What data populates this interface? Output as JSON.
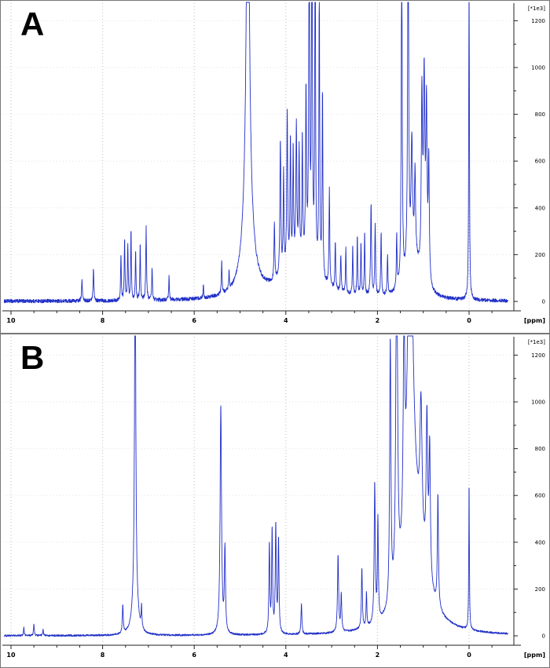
{
  "figure": {
    "panel_count": 2
  },
  "chart_data": [
    {
      "type": "line",
      "chart_kind": "nmr-spectrum",
      "panel_label": "A",
      "xlabel": "[ppm]",
      "ylabel": "[*1e3]",
      "line_color": "#2130c8",
      "grid_color": "#bdbdbd",
      "x_axis": {
        "unit": "ppm",
        "min": -0.85,
        "max": 10.15,
        "reversed": true,
        "major_ticks": [
          10,
          8,
          6,
          4,
          2,
          0
        ],
        "minor_tick_step": 0.5
      },
      "y_axis": {
        "min": 0,
        "max": 1300,
        "major_ticks": [
          0,
          200,
          400,
          600,
          800,
          1000,
          1200
        ],
        "minor_tick_step": 100
      },
      "noise_amplitude": 8,
      "peaks": [
        [
          8.45,
          90,
          0.01
        ],
        [
          8.2,
          140,
          0.01
        ],
        [
          7.6,
          200,
          0.009
        ],
        [
          7.52,
          270,
          0.009
        ],
        [
          7.45,
          240,
          0.009
        ],
        [
          7.38,
          300,
          0.009
        ],
        [
          7.28,
          210,
          0.009
        ],
        [
          7.18,
          240,
          0.009
        ],
        [
          7.05,
          310,
          0.01
        ],
        [
          6.92,
          140,
          0.009
        ],
        [
          6.55,
          100,
          0.008
        ],
        [
          5.8,
          60,
          0.008
        ],
        [
          5.4,
          140,
          0.009
        ],
        [
          5.24,
          80,
          0.008
        ],
        [
          4.83,
          1900,
          0.03
        ],
        [
          4.83,
          500,
          0.11
        ],
        [
          4.25,
          250,
          0.01
        ],
        [
          4.12,
          580,
          0.012
        ],
        [
          4.05,
          430,
          0.01
        ],
        [
          3.97,
          660,
          0.012
        ],
        [
          3.9,
          540,
          0.01
        ],
        [
          3.84,
          490,
          0.01
        ],
        [
          3.77,
          580,
          0.012
        ],
        [
          3.71,
          470,
          0.01
        ],
        [
          3.64,
          530,
          0.01
        ],
        [
          3.56,
          720,
          0.012
        ],
        [
          3.49,
          1500,
          0.012
        ],
        [
          3.43,
          1650,
          0.011
        ],
        [
          3.36,
          1500,
          0.01
        ],
        [
          3.27,
          1250,
          0.01
        ],
        [
          3.2,
          800,
          0.01
        ],
        [
          3.05,
          420,
          0.01
        ],
        [
          3.7,
          160,
          0.45
        ],
        [
          2.92,
          210,
          0.01
        ],
        [
          2.8,
          160,
          0.01
        ],
        [
          2.69,
          190,
          0.009
        ],
        [
          2.54,
          210,
          0.009
        ],
        [
          2.44,
          250,
          0.009
        ],
        [
          2.36,
          230,
          0.009
        ],
        [
          2.28,
          270,
          0.009
        ],
        [
          2.14,
          390,
          0.012
        ],
        [
          2.05,
          310,
          0.01
        ],
        [
          1.92,
          270,
          0.01
        ],
        [
          1.78,
          170,
          0.01
        ],
        [
          1.58,
          230,
          0.01
        ],
        [
          1.47,
          1550,
          0.012
        ],
        [
          1.33,
          1650,
          0.013
        ],
        [
          1.25,
          480,
          0.018
        ],
        [
          1.18,
          350,
          0.014
        ],
        [
          1.22,
          180,
          0.16
        ],
        [
          1.03,
          760,
          0.016
        ],
        [
          0.98,
          830,
          0.018
        ],
        [
          0.93,
          720,
          0.016
        ],
        [
          0.88,
          520,
          0.014
        ],
        [
          0.0,
          1650,
          0.008
        ]
      ]
    },
    {
      "type": "line",
      "chart_kind": "nmr-spectrum",
      "panel_label": "B",
      "xlabel": "[ppm]",
      "ylabel": "[*1e3]",
      "line_color": "#2130c8",
      "grid_color": "#bdbdbd",
      "x_axis": {
        "unit": "ppm",
        "min": -0.85,
        "max": 10.15,
        "reversed": true,
        "major_ticks": [
          10,
          8,
          6,
          4,
          2,
          0
        ],
        "minor_tick_step": 0.5
      },
      "y_axis": {
        "min": 0,
        "max": 1300,
        "major_ticks": [
          0,
          200,
          400,
          600,
          800,
          1000,
          1200
        ],
        "minor_tick_step": 100
      },
      "noise_amplitude": 4,
      "peaks": [
        [
          9.72,
          35,
          0.01
        ],
        [
          9.5,
          48,
          0.01
        ],
        [
          9.3,
          25,
          0.01
        ],
        [
          7.56,
          120,
          0.012
        ],
        [
          7.29,
          1800,
          0.012
        ],
        [
          7.29,
          280,
          0.05
        ],
        [
          7.15,
          90,
          0.01
        ],
        [
          5.42,
          980,
          0.018
        ],
        [
          5.33,
          360,
          0.014
        ],
        [
          4.36,
          380,
          0.012
        ],
        [
          4.3,
          440,
          0.012
        ],
        [
          4.22,
          460,
          0.013
        ],
        [
          4.16,
          400,
          0.012
        ],
        [
          3.66,
          130,
          0.012
        ],
        [
          2.86,
          330,
          0.014
        ],
        [
          2.79,
          160,
          0.012
        ],
        [
          2.34,
          260,
          0.012
        ],
        [
          2.24,
          150,
          0.01
        ],
        [
          2.06,
          600,
          0.014
        ],
        [
          1.99,
          430,
          0.012
        ],
        [
          1.72,
          1130,
          0.016
        ],
        [
          1.58,
          1700,
          0.02
        ],
        [
          1.42,
          900,
          0.02
        ],
        [
          1.29,
          1900,
          0.035
        ],
        [
          1.27,
          650,
          0.11
        ],
        [
          1.15,
          300,
          0.3
        ],
        [
          1.05,
          580,
          0.028
        ],
        [
          0.92,
          650,
          0.02
        ],
        [
          0.86,
          560,
          0.018
        ],
        [
          0.68,
          480,
          0.014
        ],
        [
          0.0,
          640,
          0.008
        ]
      ]
    }
  ]
}
